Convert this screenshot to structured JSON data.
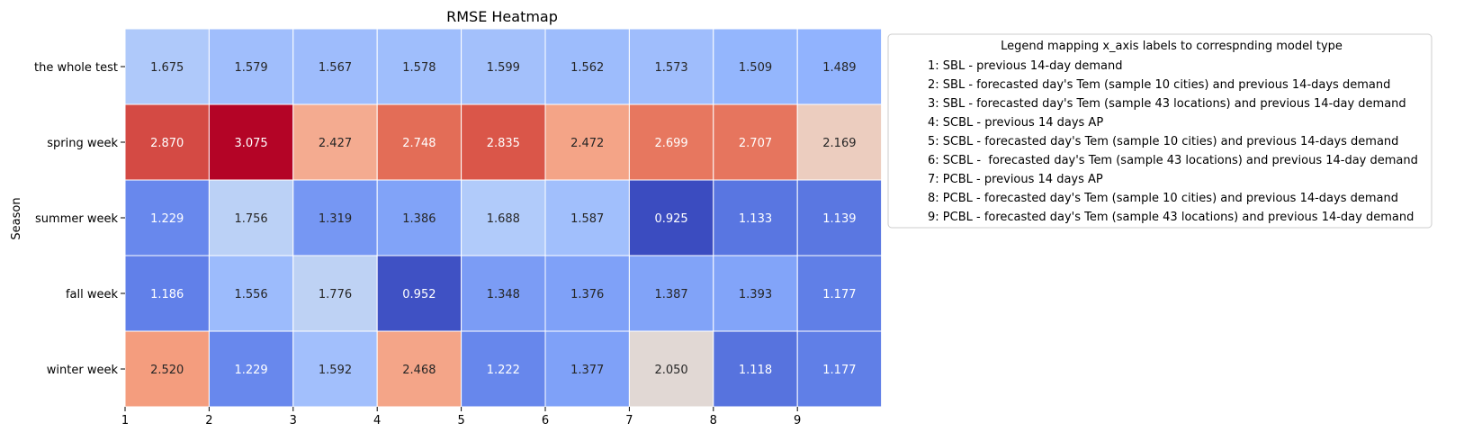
{
  "chart_data": {
    "type": "heatmap",
    "title": "RMSE Heatmap",
    "xlabel": "",
    "ylabel": "Season",
    "x_tick_labels": [
      "1",
      "2",
      "3",
      "4",
      "5",
      "6",
      "7",
      "8",
      "9"
    ],
    "rows": [
      "the whole test",
      "spring week",
      "summer week",
      "fall week",
      "winter week"
    ],
    "values": [
      [
        1.675,
        1.579,
        1.567,
        1.578,
        1.599,
        1.562,
        1.573,
        1.509,
        1.489
      ],
      [
        2.87,
        3.075,
        2.427,
        2.748,
        2.835,
        2.472,
        2.699,
        2.707,
        2.169
      ],
      [
        1.229,
        1.756,
        1.319,
        1.386,
        1.688,
        1.587,
        0.925,
        1.133,
        1.139
      ],
      [
        1.186,
        1.556,
        1.776,
        0.952,
        1.348,
        1.376,
        1.387,
        1.393,
        1.177
      ],
      [
        2.52,
        1.229,
        1.592,
        2.468,
        1.222,
        1.377,
        2.05,
        1.118,
        1.177
      ]
    ],
    "value_format": "3 decimals",
    "colormap": "coolwarm",
    "color_range": [
      0.925,
      3.075
    ],
    "grid": false,
    "cell_borders": "#ffffff",
    "legend": {
      "placement": "right-of-chart, top",
      "title": "Legend mapping x_axis labels to correspnding model type",
      "entries": [
        "1: SBL - previous 14-day demand",
        "2: SBL - forecasted day's Tem (sample 10 cities) and previous 14-days demand",
        "3: SBL - forecasted day's Tem (sample 43 locations) and previous 14-day demand",
        "4: SCBL - previous 14 days AP",
        "5: SCBL - forecasted day's Tem (sample 10 cities) and previous 14-days demand",
        "6: SCBL -  forecasted day's Tem (sample 43 locations) and previous 14-day demand",
        "7: PCBL - previous 14 days AP",
        "8: PCBL - forecasted day's Tem (sample 10 cities) and previous 14-days demand",
        "9: PCBL - forecasted day's Tem (sample 43 locations) and previous 14-day demand"
      ]
    }
  }
}
